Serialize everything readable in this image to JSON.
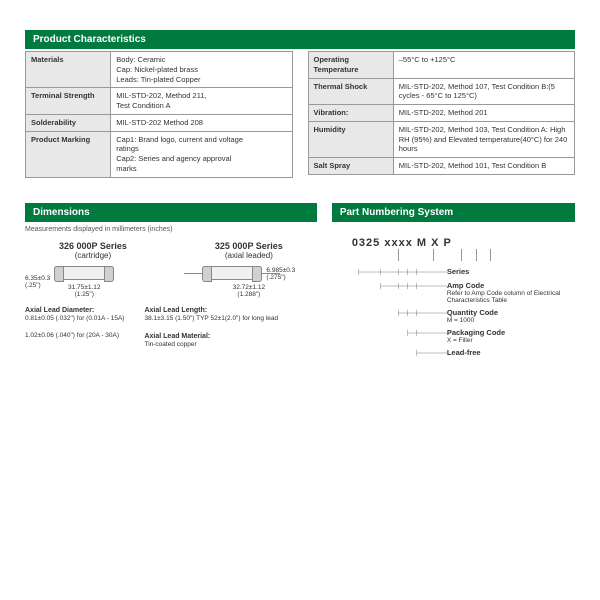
{
  "headers": {
    "pc": "Product Characteristics",
    "dim": "Dimensions",
    "pn": "Part Numbering System"
  },
  "leftTable": [
    {
      "label": "Materials",
      "value": "Body: Ceramic\nCap: Nickel-plated brass\nLeads: Tin-plated Copper"
    },
    {
      "label": "Terminal Strength",
      "value": "MIL-STD-202, Method 211,\nTest Condition A"
    },
    {
      "label": "Solderability",
      "value": "MIL-STD-202 Method 208"
    },
    {
      "label": "Product Marking",
      "value": "Cap1:    Brand logo, current and voltage\n            ratings\nCap2:    Series and agency approval\n            marks"
    }
  ],
  "rightTable": [
    {
      "label": "Operating Temperature",
      "value": "–55°C to +125°C"
    },
    {
      "label": "Thermal Shock",
      "value": "MIL-STD-202, Method 107, Test Condition B:(5 cycles - 65°C to 125°C)"
    },
    {
      "label": "Vibration:",
      "value": "MIL-STD-202, Method 201"
    },
    {
      "label": "Humidity",
      "value": "MIL-STD-202, Method 103, Test Condition A: High RH (95%) and Elevated temperature(40°C) for 240 hours"
    },
    {
      "label": "Salt Spray",
      "value": "MIL-STD-202, Method 101, Test Condition B"
    }
  ],
  "dim": {
    "note": "Measurements displayed in millimeters (inches)",
    "series1": {
      "title": "326 000P Series",
      "sub": "(cartridge)"
    },
    "series2": {
      "title": "325 000P Series",
      "sub": "(axial leaded)"
    },
    "d1h": "6.35±0.3\n(.25\")",
    "d1w": "31.75±1.12\n(1.25\")",
    "d2h": "6.985±0.3\n(.275\")",
    "d2w": "32.72±1.12\n(1.288\")",
    "notes1t": "Axial Lead Diameter:",
    "notes1a": "0.81±0.05 (.032\") for (0.01A - 15A)",
    "notes1b": "1.02±0.06 (.040\") for (20A - 30A)",
    "notes2t": "Axial Lead Length:",
    "notes2a": "38.1±3.15 (1.50\") TYP 52±1(2.0\") for long lead",
    "notes3t": "Axial Lead Material:",
    "notes3a": "Tin-coated copper"
  },
  "pn": {
    "main": "0325 xxxx M X P",
    "rows": [
      {
        "label": "Series",
        "sub": ""
      },
      {
        "label": "Amp Code",
        "sub": "Refer to Amp Code column of Electrical Characteristics Table"
      },
      {
        "label": "Quantity Code",
        "sub": "M = 1000"
      },
      {
        "label": "Packaging Code",
        "sub": "X = Filler"
      },
      {
        "label": "Lead-free",
        "sub": ""
      }
    ]
  }
}
